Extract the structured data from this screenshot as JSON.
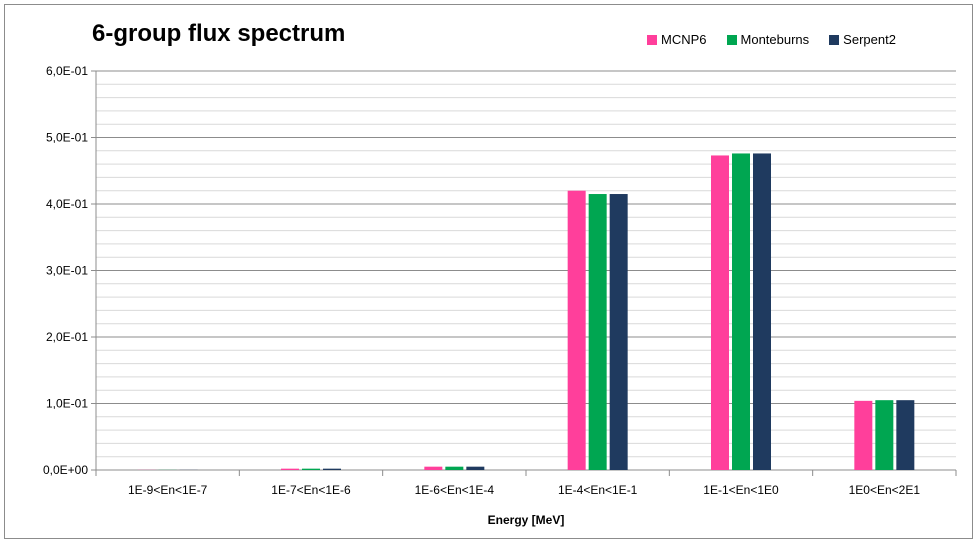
{
  "chart_data": {
    "type": "bar",
    "title": "6-group flux spectrum",
    "xlabel": "Energy [MeV]",
    "ylabel": "",
    "categories": [
      "1E-9<En<1E-7",
      "1E-7<En<1E-6",
      "1E-6<En<1E-4",
      "1E-4<En<1E-1",
      "1E-1<En<1E0",
      "1E0<En<2E1"
    ],
    "ylim": [
      0,
      0.6
    ],
    "y_ticks": [
      0,
      0.1,
      0.2,
      0.3,
      0.4,
      0.5,
      0.6
    ],
    "y_tick_labels": [
      "0,0E+00",
      "1,0E-01",
      "2,0E-01",
      "3,0E-01",
      "4,0E-01",
      "5,0E-01",
      "6,0E-01"
    ],
    "grid": true,
    "legend_position": "top-right",
    "series": [
      {
        "name": "MCNP6",
        "color": "#FF3F9B",
        "values": [
          0.0002,
          0.002,
          0.005,
          0.42,
          0.473,
          0.104
        ]
      },
      {
        "name": "Monteburns",
        "color": "#00A651",
        "values": [
          0.0002,
          0.002,
          0.005,
          0.415,
          0.476,
          0.105
        ]
      },
      {
        "name": "Serpent2",
        "color": "#1F3A5F",
        "values": [
          0.0002,
          0.002,
          0.005,
          0.415,
          0.476,
          0.105
        ]
      }
    ]
  }
}
